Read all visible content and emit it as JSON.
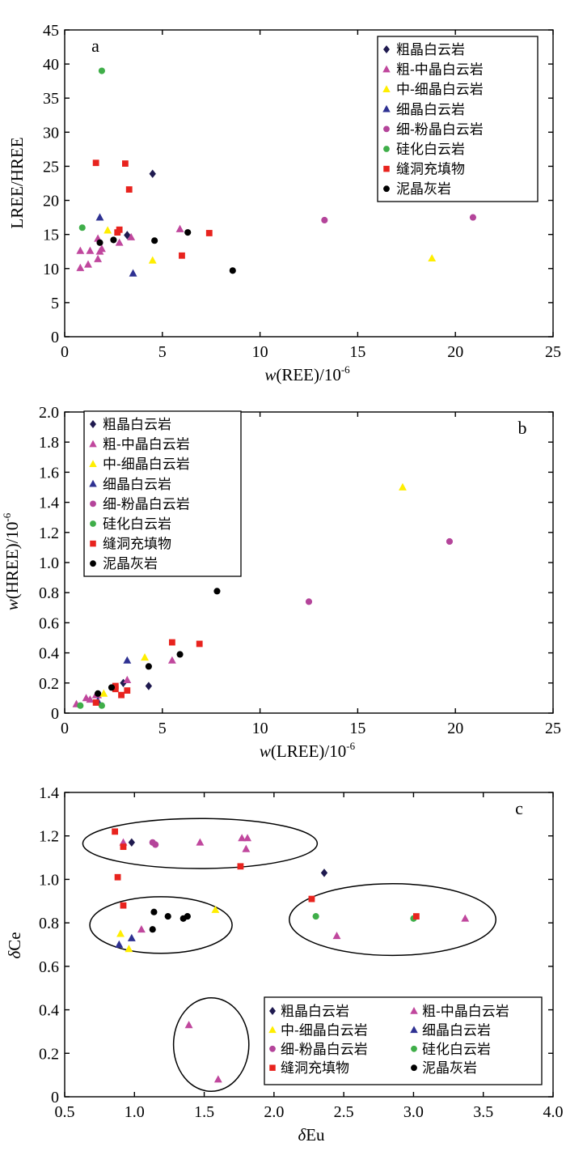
{
  "series_styles": {
    "coarse": {
      "marker": "diamond",
      "color": "#1f1a4f"
    },
    "coarse_medium": {
      "marker": "triangle",
      "color": "#c0479d"
    },
    "medium_fine": {
      "marker": "triangle",
      "color": "#ffee00"
    },
    "fine": {
      "marker": "triangle",
      "color": "#2e3192"
    },
    "fine_powder": {
      "marker": "circle",
      "color": "#b4449a"
    },
    "silicified": {
      "marker": "circle",
      "color": "#3fae49"
    },
    "fracture_fill": {
      "marker": "square",
      "color": "#e8231e"
    },
    "micrite": {
      "marker": "circle",
      "color": "#000000"
    }
  },
  "chart_data": [
    {
      "type": "scatter",
      "panel": "a",
      "xlabel_italic": "w",
      "xlabel_main": "(REE)/10",
      "xlabel_sup": "-6",
      "ylabel": "LREE/HREE",
      "xlim": [
        0,
        25
      ],
      "ylim": [
        0,
        45
      ],
      "xticks": [
        "0",
        "5",
        "10",
        "15",
        "20",
        "25"
      ],
      "yticks": [
        "0",
        "5",
        "10",
        "15",
        "20",
        "25",
        "30",
        "35",
        "40",
        "45"
      ],
      "legend_position": "top-right",
      "legend": [
        "粗晶白云岩",
        "粗-中晶白云岩",
        "中-细晶白云岩",
        "细晶白云岩",
        "细-粉晶白云岩",
        "硅化白云岩",
        "缝洞充填物",
        "泥晶灰岩"
      ],
      "series": [
        {
          "name": "粗晶白云岩",
          "style": "coarse",
          "points": [
            [
              4.5,
              23.9
            ],
            [
              3.2,
              14.9
            ]
          ]
        },
        {
          "name": "粗-中晶白云岩",
          "style": "coarse_medium",
          "points": [
            [
              0.8,
              10.1
            ],
            [
              0.8,
              12.6
            ],
            [
              1.2,
              10.6
            ],
            [
              1.3,
              12.6
            ],
            [
              1.7,
              14.4
            ],
            [
              1.7,
              11.4
            ],
            [
              1.8,
              12.5
            ],
            [
              1.9,
              12.9
            ],
            [
              2.8,
              13.8
            ],
            [
              3.4,
              14.6
            ],
            [
              5.9,
              15.8
            ]
          ]
        },
        {
          "name": "中-细晶白云岩",
          "style": "medium_fine",
          "points": [
            [
              2.2,
              15.6
            ],
            [
              4.5,
              11.2
            ],
            [
              18.8,
              11.5
            ]
          ]
        },
        {
          "name": "细晶白云岩",
          "style": "fine",
          "points": [
            [
              1.8,
              17.5
            ],
            [
              3.5,
              9.3
            ]
          ]
        },
        {
          "name": "细-粉晶白云岩",
          "style": "fine_powder",
          "points": [
            [
              13.3,
              17.1
            ],
            [
              20.9,
              17.5
            ]
          ]
        },
        {
          "name": "硅化白云岩",
          "style": "silicified",
          "points": [
            [
              1.9,
              39.0
            ],
            [
              0.9,
              16.0
            ]
          ]
        },
        {
          "name": "缝洞充填物",
          "style": "fracture_fill",
          "points": [
            [
              1.6,
              25.5
            ],
            [
              3.1,
              25.4
            ],
            [
              3.3,
              21.6
            ],
            [
              2.7,
              15.3
            ],
            [
              2.8,
              15.7
            ],
            [
              6.0,
              11.9
            ],
            [
              7.4,
              15.2
            ]
          ]
        },
        {
          "name": "泥晶灰岩",
          "style": "micrite",
          "points": [
            [
              1.8,
              13.8
            ],
            [
              2.5,
              14.2
            ],
            [
              4.6,
              14.1
            ],
            [
              6.3,
              15.3
            ],
            [
              8.6,
              9.7
            ]
          ]
        }
      ]
    },
    {
      "type": "scatter",
      "panel": "b",
      "xlabel_italic": "w",
      "xlabel_main": "(LREE)/10",
      "xlabel_sup": "-6",
      "ylabel_italic": "w",
      "ylabel_main": "(HREE)/10",
      "ylabel_sup": "-6",
      "xlim": [
        0,
        25
      ],
      "ylim": [
        0,
        2.0
      ],
      "xticks": [
        "0",
        "5",
        "10",
        "15",
        "20",
        "25"
      ],
      "yticks": [
        "0",
        "0.2",
        "0.4",
        "0.6",
        "0.8",
        "1.0",
        "1.2",
        "1.4",
        "1.6",
        "1.8",
        "2.0"
      ],
      "legend_position": "top-left",
      "legend": [
        "粗晶白云岩",
        "粗-中晶白云岩",
        "中-细晶白云岩",
        "细晶白云岩",
        "细-粉晶白云岩",
        "硅化白云岩",
        "缝洞充填物",
        "泥晶灰岩"
      ],
      "series": [
        {
          "name": "粗晶白云岩",
          "style": "coarse",
          "points": [
            [
              4.3,
              0.18
            ],
            [
              3.0,
              0.2
            ]
          ]
        },
        {
          "name": "粗-中晶白云岩",
          "style": "coarse_medium",
          "points": [
            [
              0.6,
              0.06
            ],
            [
              1.1,
              0.1
            ],
            [
              1.3,
              0.09
            ],
            [
              1.6,
              0.12
            ],
            [
              1.7,
              0.12
            ],
            [
              3.2,
              0.22
            ],
            [
              5.5,
              0.35
            ]
          ]
        },
        {
          "name": "中-细晶白云岩",
          "style": "medium_fine",
          "points": [
            [
              2.0,
              0.13
            ],
            [
              4.1,
              0.37
            ],
            [
              17.3,
              1.5
            ]
          ]
        },
        {
          "name": "细晶白云岩",
          "style": "fine",
          "points": [
            [
              1.7,
              0.08
            ],
            [
              3.2,
              0.35
            ]
          ]
        },
        {
          "name": "细-粉晶白云岩",
          "style": "fine_powder",
          "points": [
            [
              12.5,
              0.74
            ],
            [
              19.7,
              1.14
            ]
          ]
        },
        {
          "name": "硅化白云岩",
          "style": "silicified",
          "points": [
            [
              0.8,
              0.05
            ],
            [
              1.9,
              0.05
            ]
          ]
        },
        {
          "name": "缝洞充填物",
          "style": "fracture_fill",
          "points": [
            [
              1.6,
              0.07
            ],
            [
              2.6,
              0.16
            ],
            [
              2.6,
              0.18
            ],
            [
              2.9,
              0.12
            ],
            [
              3.2,
              0.15
            ],
            [
              5.5,
              0.47
            ],
            [
              6.9,
              0.46
            ]
          ]
        },
        {
          "name": "泥晶灰岩",
          "style": "micrite",
          "points": [
            [
              1.7,
              0.13
            ],
            [
              2.4,
              0.17
            ],
            [
              4.3,
              0.31
            ],
            [
              5.9,
              0.39
            ],
            [
              7.8,
              0.81
            ]
          ]
        }
      ]
    },
    {
      "type": "scatter",
      "panel": "c",
      "xlabel_italic": "δ",
      "xlabel_main": "Eu",
      "xlabel_sup": "",
      "ylabel_italic": "δ",
      "ylabel_main": "Ce",
      "ylabel_sup": "",
      "xlim": [
        0.5,
        4.0
      ],
      "ylim": [
        0,
        1.4
      ],
      "xticks": [
        "0.5",
        "1.0",
        "1.5",
        "2.0",
        "2.5",
        "3.0",
        "3.5",
        "4.0"
      ],
      "yticks": [
        "0",
        "0.2",
        "0.4",
        "0.6",
        "0.8",
        "1.0",
        "1.2",
        "1.4"
      ],
      "legend_position": "bottom-right",
      "legend": [
        "粗晶白云岩",
        "粗-中晶白云岩",
        "中-细晶白云岩",
        "细晶白云岩",
        "细-粉晶白云岩",
        "硅化白云岩",
        "缝洞充填物",
        "泥晶灰岩"
      ],
      "ellipses": [
        {
          "cx": 1.47,
          "cy": 1.165,
          "rx": 0.84,
          "ry": 0.115
        },
        {
          "cx": 1.19,
          "cy": 0.79,
          "rx": 0.51,
          "ry": 0.13
        },
        {
          "cx": 2.85,
          "cy": 0.815,
          "rx": 0.74,
          "ry": 0.165
        },
        {
          "cx": 1.55,
          "cy": 0.24,
          "rx": 0.27,
          "ry": 0.215
        }
      ],
      "series": [
        {
          "name": "粗晶白云岩",
          "style": "coarse",
          "points": [
            [
              0.98,
              1.17
            ],
            [
              2.36,
              1.03
            ]
          ]
        },
        {
          "name": "粗-中晶白云岩",
          "style": "coarse_medium",
          "points": [
            [
              0.92,
              1.17
            ],
            [
              1.47,
              1.17
            ],
            [
              1.77,
              1.19
            ],
            [
              1.81,
              1.19
            ],
            [
              1.8,
              1.14
            ],
            [
              1.05,
              0.77
            ],
            [
              2.45,
              0.74
            ],
            [
              3.37,
              0.82
            ],
            [
              1.39,
              0.33
            ],
            [
              1.6,
              0.08
            ]
          ]
        },
        {
          "name": "中-细晶白云岩",
          "style": "medium_fine",
          "points": [
            [
              0.9,
              0.75
            ],
            [
              0.96,
              0.68
            ],
            [
              1.58,
              0.86
            ]
          ]
        },
        {
          "name": "细晶白云岩",
          "style": "fine",
          "points": [
            [
              0.89,
              0.7
            ],
            [
              0.98,
              0.73
            ]
          ]
        },
        {
          "name": "细-粉晶白云岩",
          "style": "fine_powder",
          "points": [
            [
              1.13,
              1.17
            ],
            [
              1.15,
              1.16
            ]
          ]
        },
        {
          "name": "硅化白云岩",
          "style": "silicified",
          "points": [
            [
              2.3,
              0.83
            ],
            [
              3.0,
              0.82
            ]
          ]
        },
        {
          "name": "缝洞充填物",
          "style": "fracture_fill",
          "points": [
            [
              0.86,
              1.22
            ],
            [
              0.92,
              1.15
            ],
            [
              0.88,
              1.01
            ],
            [
              0.92,
              0.88
            ],
            [
              1.76,
              1.06
            ],
            [
              2.27,
              0.91
            ],
            [
              3.02,
              0.83
            ]
          ]
        },
        {
          "name": "泥晶灰岩",
          "style": "micrite",
          "points": [
            [
              1.13,
              0.77
            ],
            [
              1.14,
              0.85
            ],
            [
              1.24,
              0.83
            ],
            [
              1.35,
              0.82
            ],
            [
              1.38,
              0.83
            ]
          ]
        }
      ]
    }
  ]
}
